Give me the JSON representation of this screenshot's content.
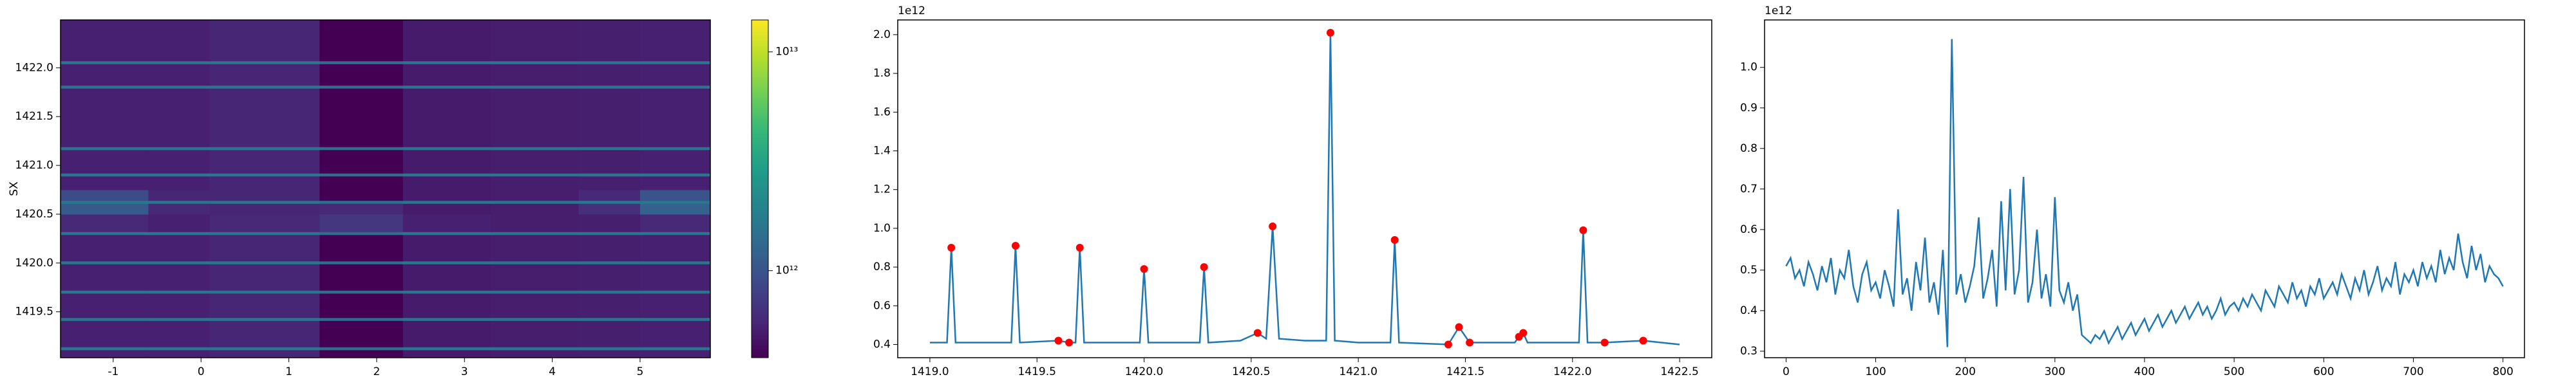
{
  "chart_data": [
    {
      "type": "heatmap",
      "ylabel": "SX",
      "x_edges": [
        -1.6,
        -0.6,
        0.1,
        1.35,
        2.3,
        3.3,
        4.3,
        5.0,
        5.8
      ],
      "y_edges": [
        1419.03,
        1419.11,
        1419.14,
        1419.41,
        1419.44,
        1419.69,
        1419.72,
        1419.99,
        1420.02,
        1420.29,
        1420.32,
        1420.5,
        1420.61,
        1420.64,
        1420.75,
        1420.89,
        1420.92,
        1421.16,
        1421.19,
        1421.79,
        1421.82,
        1422.04,
        1422.07,
        1422.49
      ],
      "z": [
        [
          550000000000.0,
          550000000000.0,
          580000000000.0,
          380000000000.0,
          520000000000.0,
          530000000000.0,
          540000000000.0,
          550000000000.0
        ],
        [
          1600000000000.0,
          1600000000000.0,
          1600000000000.0,
          1400000000000.0,
          1600000000000.0,
          1600000000000.0,
          1600000000000.0,
          1600000000000.0
        ],
        [
          550000000000.0,
          550000000000.0,
          580000000000.0,
          380000000000.0,
          520000000000.0,
          530000000000.0,
          540000000000.0,
          550000000000.0
        ],
        [
          1600000000000.0,
          1600000000000.0,
          1600000000000.0,
          1400000000000.0,
          1600000000000.0,
          1600000000000.0,
          1600000000000.0,
          1600000000000.0
        ],
        [
          550000000000.0,
          550000000000.0,
          580000000000.0,
          380000000000.0,
          520000000000.0,
          530000000000.0,
          540000000000.0,
          550000000000.0
        ],
        [
          1600000000000.0,
          1600000000000.0,
          1600000000000.0,
          1400000000000.0,
          1600000000000.0,
          1600000000000.0,
          1600000000000.0,
          1600000000000.0
        ],
        [
          550000000000.0,
          550000000000.0,
          580000000000.0,
          380000000000.0,
          520000000000.0,
          530000000000.0,
          540000000000.0,
          550000000000.0
        ],
        [
          1600000000000.0,
          1600000000000.0,
          1600000000000.0,
          1400000000000.0,
          1600000000000.0,
          1600000000000.0,
          1600000000000.0,
          1600000000000.0
        ],
        [
          550000000000.0,
          550000000000.0,
          580000000000.0,
          380000000000.0,
          520000000000.0,
          530000000000.0,
          540000000000.0,
          550000000000.0
        ],
        [
          1600000000000.0,
          1600000000000.0,
          1600000000000.0,
          1400000000000.0,
          1600000000000.0,
          1600000000000.0,
          1600000000000.0,
          1600000000000.0
        ],
        [
          600000000000.0,
          550000000000.0,
          600000000000.0,
          700000000000.0,
          550000000000.0,
          530000000000.0,
          540000000000.0,
          600000000000.0
        ],
        [
          1100000000000.0,
          600000000000.0,
          580000000000.0,
          600000000000.0,
          520000000000.0,
          530000000000.0,
          650000000000.0,
          1200000000000.0
        ],
        [
          1600000000000.0,
          1600000000000.0,
          1600000000000.0,
          1400000000000.0,
          1600000000000.0,
          1600000000000.0,
          1600000000000.0,
          1600000000000.0
        ],
        [
          900000000000.0,
          580000000000.0,
          580000000000.0,
          400000000000.0,
          520000000000.0,
          530000000000.0,
          600000000000.0,
          1000000000000.0
        ],
        [
          550000000000.0,
          550000000000.0,
          580000000000.0,
          380000000000.0,
          520000000000.0,
          530000000000.0,
          540000000000.0,
          550000000000.0
        ],
        [
          1600000000000.0,
          1600000000000.0,
          1600000000000.0,
          1400000000000.0,
          1600000000000.0,
          1600000000000.0,
          1600000000000.0,
          1600000000000.0
        ],
        [
          550000000000.0,
          550000000000.0,
          580000000000.0,
          380000000000.0,
          520000000000.0,
          530000000000.0,
          540000000000.0,
          550000000000.0
        ],
        [
          1600000000000.0,
          1600000000000.0,
          1600000000000.0,
          1400000000000.0,
          1600000000000.0,
          1600000000000.0,
          1600000000000.0,
          1600000000000.0
        ],
        [
          550000000000.0,
          550000000000.0,
          580000000000.0,
          380000000000.0,
          520000000000.0,
          530000000000.0,
          540000000000.0,
          550000000000.0
        ],
        [
          1600000000000.0,
          1600000000000.0,
          1600000000000.0,
          1400000000000.0,
          1600000000000.0,
          1600000000000.0,
          1600000000000.0,
          1600000000000.0
        ],
        [
          550000000000.0,
          550000000000.0,
          580000000000.0,
          380000000000.0,
          520000000000.0,
          530000000000.0,
          540000000000.0,
          550000000000.0
        ],
        [
          1600000000000.0,
          1600000000000.0,
          1600000000000.0,
          1400000000000.0,
          1600000000000.0,
          1600000000000.0,
          1600000000000.0,
          1600000000000.0
        ],
        [
          550000000000.0,
          550000000000.0,
          580000000000.0,
          380000000000.0,
          520000000000.0,
          530000000000.0,
          540000000000.0,
          550000000000.0
        ]
      ],
      "xlim": [
        -1.6,
        5.8
      ],
      "ylim": [
        1419.03,
        1422.49
      ],
      "xticks": [
        -1,
        0,
        1,
        2,
        3,
        4,
        5
      ],
      "yticks": [
        1419.5,
        {
          "value": 1420.0,
          "label": "1420.0"
        },
        1420.5,
        {
          "value": 1421.0,
          "label": "1421.0"
        },
        1421.5,
        {
          "value": 1422.0,
          "label": "1422.0"
        }
      ],
      "colormap": "viridis",
      "clim": [
        400000000000.0,
        14000000000000.0
      ],
      "log_color": true,
      "cticks": [
        {
          "value": 1000000000000.0,
          "label": "10¹²"
        },
        {
          "value": 10000000000000.0,
          "label": "10¹³"
        }
      ]
    },
    {
      "type": "line",
      "offset_text": "1e12",
      "color": "#1f77b4",
      "x": [
        1419.0,
        1419.08,
        1419.1,
        1419.12,
        1419.38,
        1419.4,
        1419.42,
        1419.6,
        1419.65,
        1419.68,
        1419.7,
        1419.72,
        1419.98,
        1420.0,
        1420.02,
        1420.26,
        1420.28,
        1420.3,
        1420.45,
        1420.53,
        1420.57,
        1420.6,
        1420.63,
        1420.75,
        1420.85,
        1420.87,
        1420.89,
        1421.0,
        1421.15,
        1421.17,
        1421.19,
        1421.42,
        1421.47,
        1421.52,
        1421.73,
        1421.75,
        1421.77,
        1421.79,
        1422.03,
        1422.05,
        1422.07,
        1422.15,
        1422.33,
        1422.5
      ],
      "values": [
        0.41,
        0.41,
        0.9,
        0.41,
        0.41,
        0.91,
        0.41,
        0.42,
        0.41,
        0.41,
        0.9,
        0.41,
        0.41,
        0.79,
        0.41,
        0.41,
        0.8,
        0.41,
        0.42,
        0.46,
        0.43,
        1.01,
        0.43,
        0.42,
        0.42,
        2.01,
        0.42,
        0.41,
        0.41,
        0.94,
        0.41,
        0.4,
        0.49,
        0.41,
        0.41,
        0.44,
        0.46,
        0.41,
        0.41,
        0.99,
        0.41,
        0.41,
        0.42,
        0.4
      ],
      "peaks": {
        "color": "#ff0000",
        "x": [
          1419.1,
          1419.4,
          1419.6,
          1419.65,
          1419.7,
          1420.0,
          1420.28,
          1420.53,
          1420.6,
          1420.87,
          1421.17,
          1421.42,
          1421.47,
          1421.52,
          1421.75,
          1421.77,
          1422.05,
          1422.15,
          1422.33
        ],
        "values": [
          0.9,
          0.91,
          0.42,
          0.41,
          0.9,
          0.79,
          0.8,
          0.46,
          1.01,
          2.01,
          0.94,
          0.4,
          0.49,
          0.41,
          0.44,
          0.46,
          0.99,
          0.41,
          0.42
        ]
      },
      "xlim": [
        1418.85,
        1422.65
      ],
      "ylim": [
        0.332,
        2.076
      ],
      "xticks": [
        {
          "value": 1419.0,
          "label": "1419.0"
        },
        1419.5,
        {
          "value": 1420.0,
          "label": "1420.0"
        },
        1420.5,
        {
          "value": 1421.0,
          "label": "1421.0"
        },
        1421.5,
        {
          "value": 1422.0,
          "label": "1422.0"
        },
        1422.5
      ],
      "yticks": [
        0.4,
        0.6,
        0.8,
        {
          "value": 1.0,
          "label": "1.0"
        },
        1.2,
        1.4,
        1.6,
        1.8,
        {
          "value": 2.0,
          "label": "2.0"
        }
      ]
    },
    {
      "type": "line",
      "offset_text": "1e12",
      "color": "#1f77b4",
      "x": [
        0,
        5,
        10,
        15,
        20,
        25,
        30,
        35,
        40,
        45,
        50,
        55,
        60,
        65,
        70,
        75,
        80,
        85,
        90,
        95,
        100,
        105,
        110,
        115,
        120,
        125,
        130,
        135,
        140,
        145,
        150,
        155,
        160,
        165,
        170,
        175,
        180,
        185,
        190,
        195,
        200,
        205,
        210,
        215,
        220,
        225,
        230,
        235,
        240,
        245,
        250,
        255,
        260,
        265,
        270,
        275,
        280,
        285,
        290,
        295,
        300,
        305,
        310,
        315,
        320,
        325,
        330,
        335,
        340,
        345,
        350,
        355,
        360,
        365,
        370,
        375,
        380,
        385,
        390,
        395,
        400,
        405,
        410,
        415,
        420,
        425,
        430,
        435,
        440,
        445,
        450,
        455,
        460,
        465,
        470,
        475,
        480,
        485,
        490,
        495,
        500,
        505,
        510,
        515,
        520,
        525,
        530,
        535,
        540,
        545,
        550,
        555,
        560,
        565,
        570,
        575,
        580,
        585,
        590,
        595,
        600,
        605,
        610,
        615,
        620,
        625,
        630,
        635,
        640,
        645,
        650,
        655,
        660,
        665,
        670,
        675,
        680,
        685,
        690,
        695,
        700,
        705,
        710,
        715,
        720,
        725,
        730,
        735,
        740,
        745,
        750,
        755,
        760,
        765,
        770,
        775,
        780,
        785,
        790,
        795,
        800
      ],
      "values": [
        0.51,
        0.53,
        0.48,
        0.5,
        0.46,
        0.52,
        0.49,
        0.45,
        0.51,
        0.47,
        0.53,
        0.44,
        0.5,
        0.48,
        0.55,
        0.46,
        0.42,
        0.49,
        0.52,
        0.45,
        0.47,
        0.43,
        0.5,
        0.46,
        0.41,
        0.65,
        0.44,
        0.48,
        0.4,
        0.52,
        0.45,
        0.58,
        0.42,
        0.47,
        0.39,
        0.55,
        0.31,
        1.07,
        0.44,
        0.49,
        0.42,
        0.46,
        0.51,
        0.63,
        0.43,
        0.48,
        0.55,
        0.41,
        0.67,
        0.45,
        0.7,
        0.44,
        0.5,
        0.73,
        0.42,
        0.47,
        0.6,
        0.43,
        0.49,
        0.41,
        0.68,
        0.45,
        0.42,
        0.47,
        0.4,
        0.44,
        0.34,
        0.33,
        0.32,
        0.34,
        0.33,
        0.35,
        0.32,
        0.34,
        0.36,
        0.33,
        0.35,
        0.37,
        0.34,
        0.36,
        0.38,
        0.35,
        0.37,
        0.39,
        0.36,
        0.38,
        0.4,
        0.37,
        0.39,
        0.41,
        0.38,
        0.4,
        0.42,
        0.39,
        0.41,
        0.38,
        0.4,
        0.43,
        0.39,
        0.41,
        0.42,
        0.4,
        0.43,
        0.41,
        0.44,
        0.42,
        0.4,
        0.45,
        0.43,
        0.41,
        0.46,
        0.44,
        0.42,
        0.47,
        0.43,
        0.45,
        0.41,
        0.46,
        0.44,
        0.48,
        0.43,
        0.45,
        0.47,
        0.44,
        0.49,
        0.46,
        0.43,
        0.48,
        0.45,
        0.5,
        0.44,
        0.47,
        0.51,
        0.45,
        0.48,
        0.46,
        0.52,
        0.44,
        0.49,
        0.47,
        0.5,
        0.46,
        0.52,
        0.48,
        0.51,
        0.47,
        0.55,
        0.49,
        0.53,
        0.5,
        0.59,
        0.52,
        0.48,
        0.56,
        0.5,
        0.54,
        0.47,
        0.51,
        0.49,
        0.48,
        0.46
      ],
      "xlim": [
        -24,
        824
      ],
      "ylim": [
        0.284,
        1.117
      ],
      "xticks": [
        0,
        100,
        200,
        300,
        400,
        500,
        600,
        700,
        800
      ],
      "yticks": [
        0.3,
        0.4,
        0.5,
        0.6,
        0.7,
        0.8,
        0.9,
        {
          "value": 1.0,
          "label": "1.0"
        }
      ]
    }
  ]
}
